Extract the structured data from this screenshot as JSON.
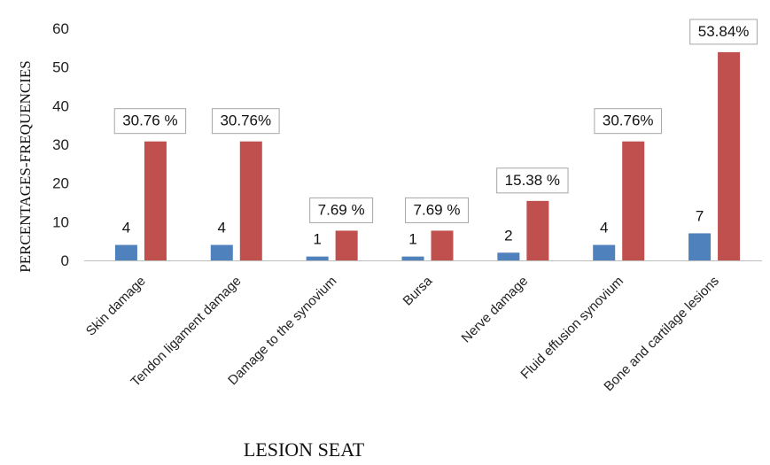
{
  "chart_data": {
    "type": "bar",
    "title": "",
    "xlabel": "LESION SEAT",
    "ylabel": "PERCENTAGES-FREQUENCIES",
    "ylim": [
      0,
      60
    ],
    "yticks": [
      0,
      10,
      20,
      30,
      40,
      50,
      60
    ],
    "grid": false,
    "legend": "none",
    "categories": [
      "Skin damage",
      "Tendon ligament damage",
      "Damage to the synovium",
      "Bursa",
      "Nerve damage",
      "Fluid effusion synovium",
      "Bone and cartilage lesions"
    ],
    "series": [
      {
        "color": "#4f81bd",
        "values": [
          4,
          4,
          1,
          1,
          2,
          4,
          7
        ],
        "labels": [
          "4",
          "4",
          "1",
          "1",
          "2",
          "4",
          "7"
        ]
      },
      {
        "color": "#c0504d",
        "values": [
          30.76,
          30.76,
          7.69,
          7.69,
          15.38,
          30.76,
          53.84
        ],
        "labels": [
          "30.76 %",
          "30.76%",
          "7.69 %",
          "7.69 %",
          "15.38 %",
          "30.76%",
          "53.84%"
        ]
      }
    ]
  }
}
